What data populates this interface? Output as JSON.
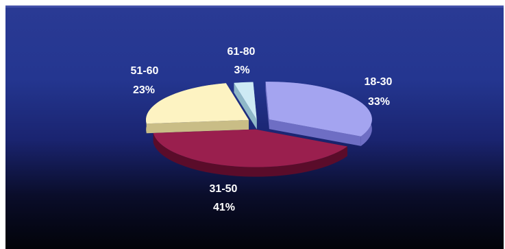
{
  "chart_data": {
    "type": "pie",
    "style": "3d-exploded",
    "slices": [
      {
        "label": "18-30",
        "percent_label": "33%",
        "value": 33,
        "color": "#a4a4f0",
        "side": "#6e6ec4"
      },
      {
        "label": "31-50",
        "percent_label": "41%",
        "value": 41,
        "color": "#9a1f4e",
        "side": "#5a0c2a"
      },
      {
        "label": "51-60",
        "percent_label": "23%",
        "value": 23,
        "color": "#fdf3c2",
        "side": "#c9bd86"
      },
      {
        "label": "61-80",
        "percent_label": "3%",
        "value": 3,
        "color": "#cdeaf4",
        "side": "#8fb8c8"
      }
    ],
    "legend": "none",
    "background": "dark-blue-gradient"
  }
}
